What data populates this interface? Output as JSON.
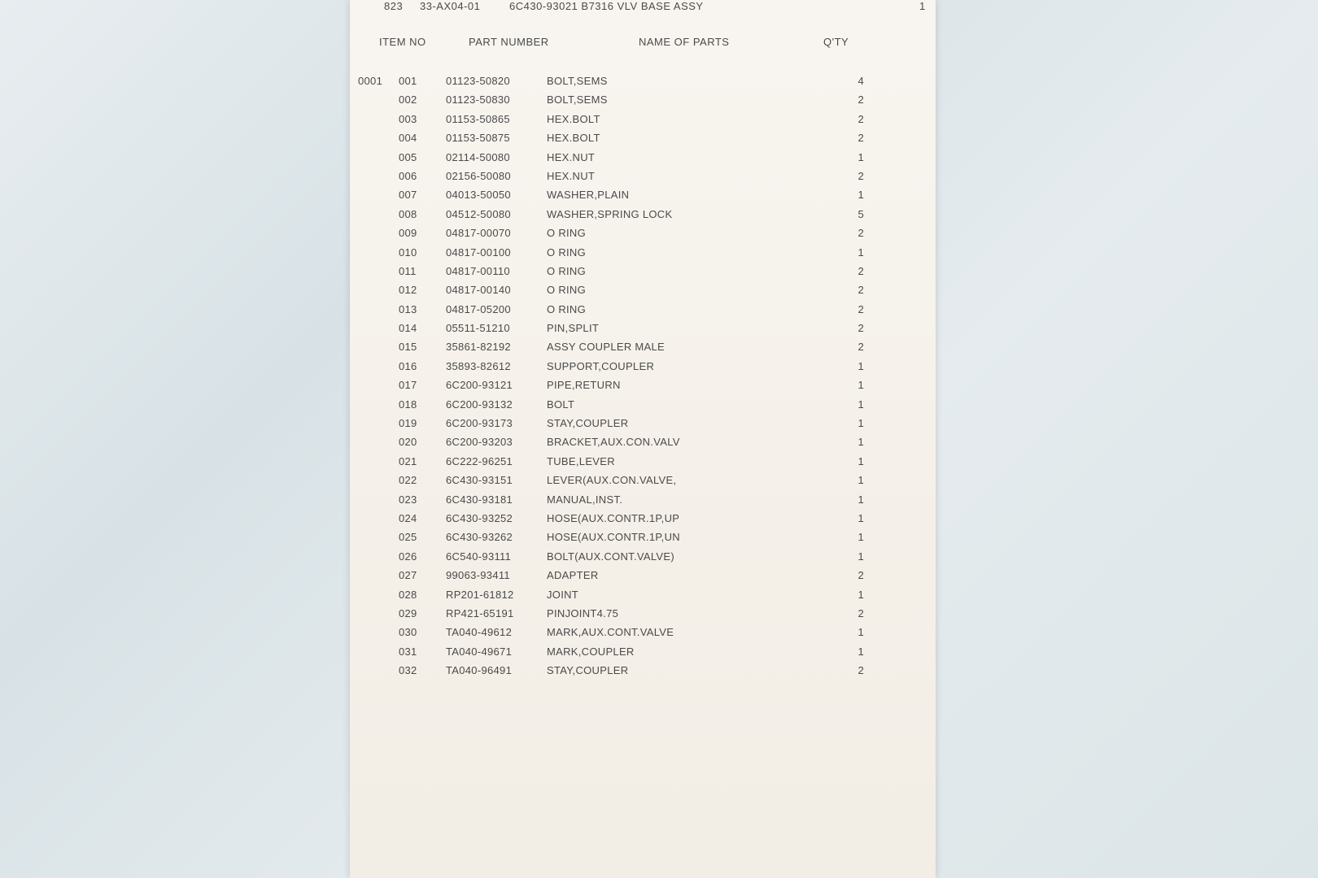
{
  "background_gradient": [
    "#e8edf0",
    "#d8e2e6",
    "#e5ebee",
    "#dce5e8"
  ],
  "paper_gradient": [
    "#f8f5f0",
    "#f5f1ea",
    "#f2ede5"
  ],
  "text_color": "#4a4a4a",
  "font_size_pt": 10,
  "header": {
    "code1": "823",
    "code2": "33-AX04-01",
    "code3": "6C430-93021 B7316 VLV BASE ASSY",
    "qty": "1"
  },
  "columns": {
    "item_no": "ITEM NO",
    "part_number": "PART NUMBER",
    "name_of_parts": "NAME OF PARTS",
    "qty": "Q'TY"
  },
  "group_code": "0001",
  "rows": [
    {
      "idx": "001",
      "part": "01123-50820",
      "name": "BOLT,SEMS",
      "qty": "4"
    },
    {
      "idx": "002",
      "part": "01123-50830",
      "name": "BOLT,SEMS",
      "qty": "2"
    },
    {
      "idx": "003",
      "part": "01153-50865",
      "name": "HEX.BOLT",
      "qty": "2"
    },
    {
      "idx": "004",
      "part": "01153-50875",
      "name": "HEX.BOLT",
      "qty": "2"
    },
    {
      "idx": "005",
      "part": "02114-50080",
      "name": "HEX.NUT",
      "qty": "1"
    },
    {
      "idx": "006",
      "part": "02156-50080",
      "name": "HEX.NUT",
      "qty": "2"
    },
    {
      "idx": "007",
      "part": "04013-50050",
      "name": "WASHER,PLAIN",
      "qty": "1"
    },
    {
      "idx": "008",
      "part": "04512-50080",
      "name": "WASHER,SPRING LOCK",
      "qty": "5"
    },
    {
      "idx": "009",
      "part": "04817-00070",
      "name": "O RING",
      "qty": "2"
    },
    {
      "idx": "010",
      "part": "04817-00100",
      "name": "O RING",
      "qty": "1"
    },
    {
      "idx": "011",
      "part": "04817-00110",
      "name": "O RING",
      "qty": "2"
    },
    {
      "idx": "012",
      "part": "04817-00140",
      "name": "O RING",
      "qty": "2"
    },
    {
      "idx": "013",
      "part": "04817-05200",
      "name": "O RING",
      "qty": "2"
    },
    {
      "idx": "014",
      "part": "05511-51210",
      "name": "PIN,SPLIT",
      "qty": "2"
    },
    {
      "idx": "015",
      "part": "35861-82192",
      "name": "ASSY COUPLER MALE",
      "qty": "2"
    },
    {
      "idx": "016",
      "part": "35893-82612",
      "name": "SUPPORT,COUPLER",
      "qty": "1"
    },
    {
      "idx": "017",
      "part": "6C200-93121",
      "name": "PIPE,RETURN",
      "qty": "1"
    },
    {
      "idx": "018",
      "part": "6C200-93132",
      "name": "BOLT",
      "qty": "1"
    },
    {
      "idx": "019",
      "part": "6C200-93173",
      "name": "STAY,COUPLER",
      "qty": "1"
    },
    {
      "idx": "020",
      "part": "6C200-93203",
      "name": "BRACKET,AUX.CON.VALV",
      "qty": "1"
    },
    {
      "idx": "021",
      "part": "6C222-96251",
      "name": "TUBE,LEVER",
      "qty": "1"
    },
    {
      "idx": "022",
      "part": "6C430-93151",
      "name": "LEVER(AUX.CON.VALVE,",
      "qty": "1"
    },
    {
      "idx": "023",
      "part": "6C430-93181",
      "name": "MANUAL,INST.",
      "qty": "1"
    },
    {
      "idx": "024",
      "part": "6C430-93252",
      "name": "HOSE(AUX.CONTR.1P,UP",
      "qty": "1"
    },
    {
      "idx": "025",
      "part": "6C430-93262",
      "name": "HOSE(AUX.CONTR.1P,UN",
      "qty": "1"
    },
    {
      "idx": "026",
      "part": "6C540-93111",
      "name": "BOLT(AUX.CONT.VALVE)",
      "qty": "1"
    },
    {
      "idx": "027",
      "part": "99063-93411",
      "name": "ADAPTER",
      "qty": "2"
    },
    {
      "idx": "028",
      "part": "RP201-61812",
      "name": "JOINT",
      "qty": "1"
    },
    {
      "idx": "029",
      "part": "RP421-65191",
      "name": "PINJOINT4.75",
      "qty": "2"
    },
    {
      "idx": "030",
      "part": "TA040-49612",
      "name": "MARK,AUX.CONT.VALVE",
      "qty": "1"
    },
    {
      "idx": "031",
      "part": "TA040-49671",
      "name": "MARK,COUPLER",
      "qty": "1"
    },
    {
      "idx": "032",
      "part": "TA040-96491",
      "name": "STAY,COUPLER",
      "qty": "2"
    },
    {
      "idx": "",
      "part": "",
      "name": "",
      "qty": ""
    },
    {
      "idx": "",
      "part": "",
      "name": "",
      "qty": ""
    },
    {
      "idx": "",
      "part": "",
      "name": "",
      "qty": ""
    },
    {
      "idx": "",
      "part": "",
      "name": "",
      "qty": ""
    },
    {
      "idx": "",
      "part": "",
      "name": "",
      "qty": ""
    },
    {
      "idx": "",
      "part": "",
      "name": "",
      "qty": ""
    },
    {
      "idx": "",
      "part": "",
      "name": "",
      "qty": ""
    },
    {
      "idx": "",
      "part": "",
      "name": "",
      "qty": ""
    },
    {
      "idx": "",
      "part": "",
      "name": "",
      "qty": ""
    },
    {
      "idx": "",
      "part": "",
      "name": "",
      "qty": ""
    }
  ]
}
